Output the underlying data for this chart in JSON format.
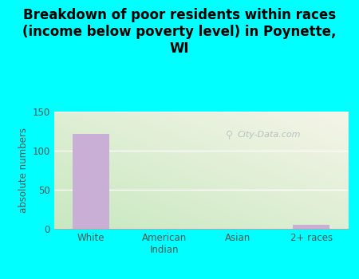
{
  "title": "Breakdown of poor residents within races\n(income below poverty level) in Poynette,\nWI",
  "categories": [
    "White",
    "American\nIndian",
    "Asian",
    "2+ races"
  ],
  "values": [
    121,
    0,
    0,
    5
  ],
  "bar_color": "#c9aed6",
  "ylabel": "absolute numbers",
  "ylim": [
    0,
    150
  ],
  "yticks": [
    0,
    50,
    100,
    150
  ],
  "background_outer": "#00ffff",
  "bg_top_right": "#f8f8f0",
  "bg_bottom_left": "#c8e8c0",
  "grid_color": "#ffffff",
  "title_color": "#000000",
  "title_fontsize": 12,
  "label_color": "#555555",
  "tick_color": "#555555",
  "watermark": "City-Data.com",
  "bar_width": 0.5
}
